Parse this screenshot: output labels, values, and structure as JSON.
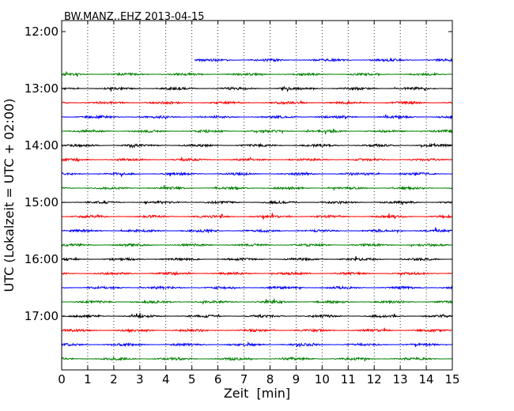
{
  "chart_data": {
    "type": "line",
    "title": "BW.MANZ..EHZ 2013-04-15",
    "xlabel": "Zeit  [min]",
    "ylabel": "UTC (Lokalzeit = UTC + 02:00)",
    "xlim": [
      0,
      15
    ],
    "x_ticks": [
      0,
      1,
      2,
      3,
      4,
      5,
      6,
      7,
      8,
      9,
      10,
      11,
      12,
      13,
      14,
      15
    ],
    "x_tick_labels": [
      "0",
      "1",
      "2",
      "3",
      "4",
      "5",
      "6",
      "7",
      "8",
      "9",
      "10",
      "11",
      "12",
      "13",
      "14",
      "15"
    ],
    "y_tick_labels": [
      "12:00",
      "13:00",
      "14:00",
      "15:00",
      "16:00",
      "17:00"
    ],
    "y_tick_times": [
      "12:00",
      "13:00",
      "14:00",
      "15:00",
      "16:00",
      "17:00"
    ],
    "grid": "x-dotted",
    "trace_interval_min": 15,
    "trace_color_cycle": [
      "#0000ff",
      "#008000",
      "#000000",
      "#ff0000"
    ],
    "traces": [
      {
        "start": "12:30",
        "x_start": 5.1,
        "x_end": 15,
        "color": "#0000ff",
        "amplitude": 0.6
      },
      {
        "start": "12:45",
        "x_start": 0,
        "x_end": 15,
        "color": "#008000",
        "amplitude": 0.55
      },
      {
        "start": "13:00",
        "x_start": 0,
        "x_end": 15,
        "color": "#000000",
        "amplitude": 0.6
      },
      {
        "start": "13:15",
        "x_start": 0,
        "x_end": 15,
        "color": "#ff0000",
        "amplitude": 0.6
      },
      {
        "start": "13:30",
        "x_start": 0,
        "x_end": 15,
        "color": "#0000ff",
        "amplitude": 0.6
      },
      {
        "start": "13:45",
        "x_start": 0,
        "x_end": 15,
        "color": "#008000",
        "amplitude": 0.6
      },
      {
        "start": "14:00",
        "x_start": 0,
        "x_end": 15,
        "color": "#000000",
        "amplitude": 0.6
      },
      {
        "start": "14:15",
        "x_start": 0,
        "x_end": 15,
        "color": "#ff0000",
        "amplitude": 0.55
      },
      {
        "start": "14:30",
        "x_start": 0,
        "x_end": 15,
        "color": "#0000ff",
        "amplitude": 0.6
      },
      {
        "start": "14:45",
        "x_start": 0,
        "x_end": 15,
        "color": "#008000",
        "amplitude": 0.55
      },
      {
        "start": "15:00",
        "x_start": 0,
        "x_end": 15,
        "color": "#000000",
        "amplitude": 0.6
      },
      {
        "start": "15:15",
        "x_start": 0,
        "x_end": 15,
        "color": "#ff0000",
        "amplitude": 0.6
      },
      {
        "start": "15:30",
        "x_start": 0,
        "x_end": 15,
        "color": "#0000ff",
        "amplitude": 0.6
      },
      {
        "start": "15:45",
        "x_start": 0,
        "x_end": 15,
        "color": "#008000",
        "amplitude": 0.6
      },
      {
        "start": "16:00",
        "x_start": 0,
        "x_end": 15,
        "color": "#000000",
        "amplitude": 0.6
      },
      {
        "start": "16:15",
        "x_start": 0,
        "x_end": 15,
        "color": "#ff0000",
        "amplitude": 0.6
      },
      {
        "start": "16:30",
        "x_start": 0,
        "x_end": 15,
        "color": "#0000ff",
        "amplitude": 0.6
      },
      {
        "start": "16:45",
        "x_start": 0,
        "x_end": 15,
        "color": "#008000",
        "amplitude": 0.6
      },
      {
        "start": "17:00",
        "x_start": 0,
        "x_end": 15,
        "color": "#000000",
        "amplitude": 0.6
      },
      {
        "start": "17:15",
        "x_start": 0,
        "x_end": 15,
        "color": "#ff0000",
        "amplitude": 0.6
      },
      {
        "start": "17:30",
        "x_start": 0,
        "x_end": 15,
        "color": "#0000ff",
        "amplitude": 0.6
      },
      {
        "start": "17:45",
        "x_start": 0,
        "x_end": 15,
        "color": "#008000",
        "amplitude": 0.6
      }
    ]
  }
}
